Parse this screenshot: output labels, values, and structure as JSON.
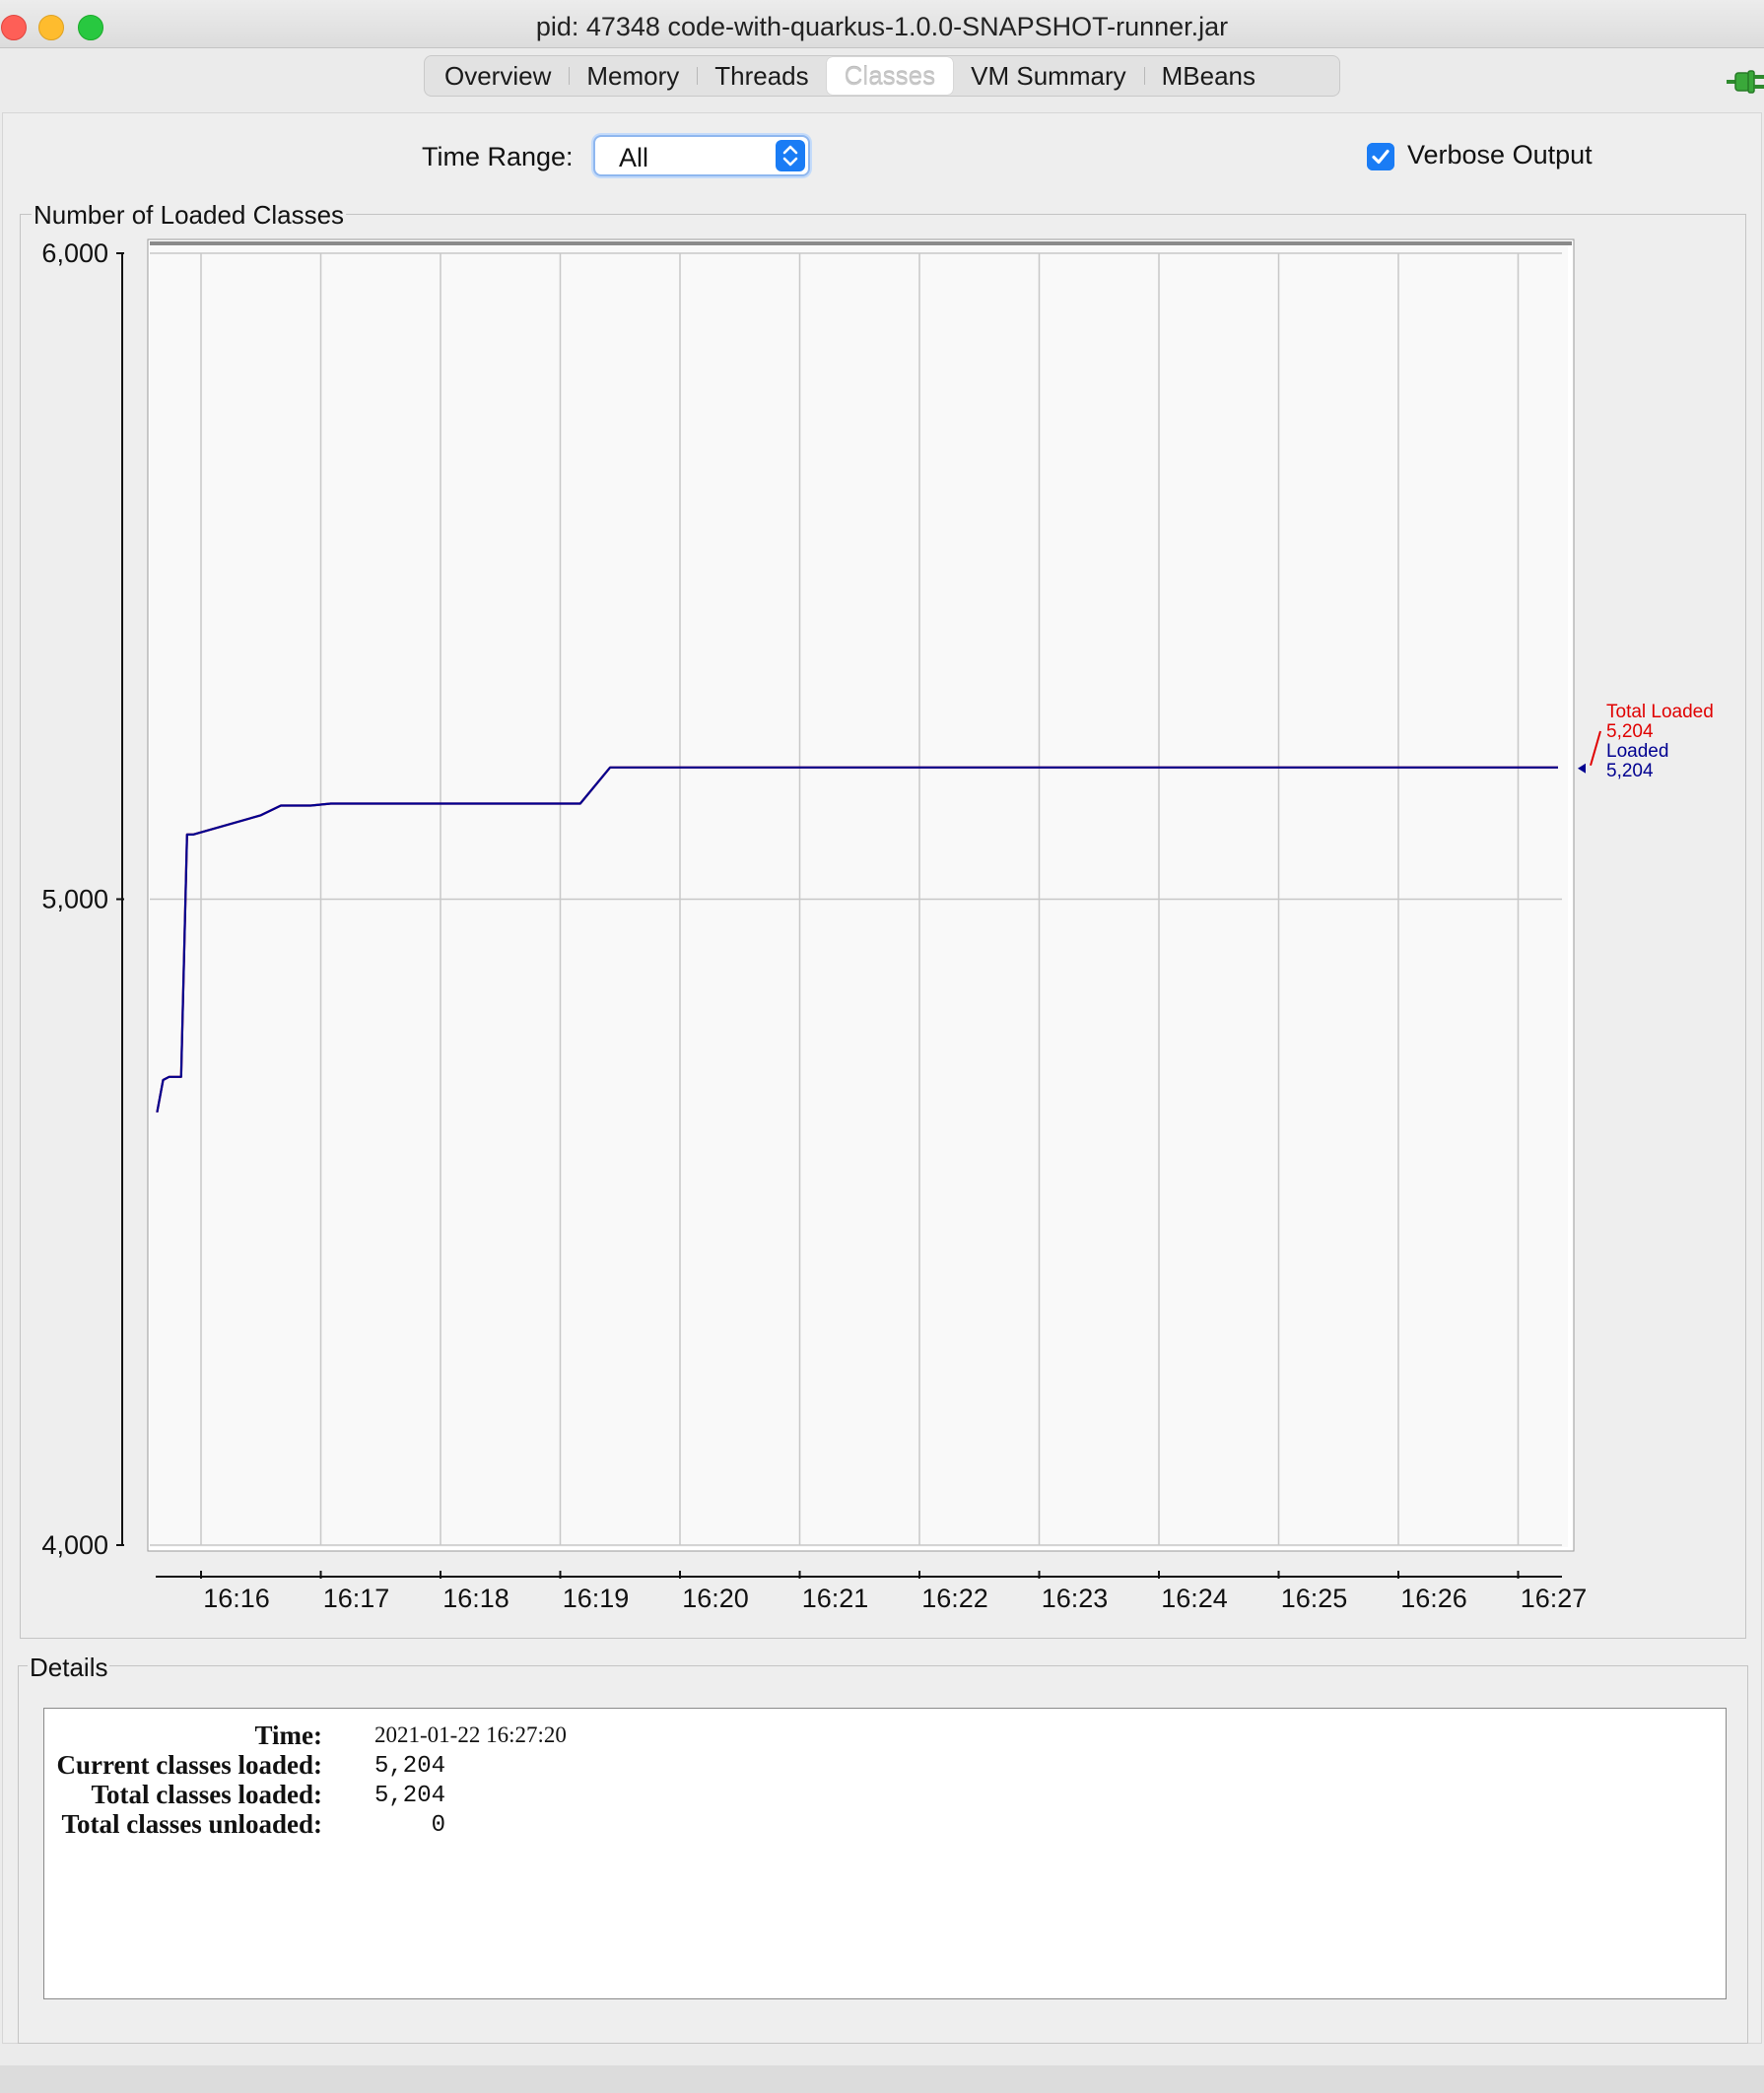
{
  "window": {
    "title": "pid: 47348 code-with-quarkus-1.0.0-SNAPSHOT-runner.jar"
  },
  "tabs": [
    {
      "label": "Overview",
      "active": false
    },
    {
      "label": "Memory",
      "active": false
    },
    {
      "label": "Threads",
      "active": false
    },
    {
      "label": "Classes",
      "active": true
    },
    {
      "label": "VM Summary",
      "active": false
    },
    {
      "label": "MBeans",
      "active": false
    }
  ],
  "controls": {
    "time_range_label": "Time Range:",
    "time_range_value": "All",
    "verbose_label": "Verbose Output",
    "verbose_checked": true,
    "connection_icon": "plug-icon",
    "connection_color": "#3aa83a"
  },
  "chart_panel": {
    "title": "Number of Loaded Classes"
  },
  "chart_data": {
    "type": "line",
    "x_ticks": [
      "16:16",
      "16:17",
      "16:18",
      "16:19",
      "16:20",
      "16:21",
      "16:22",
      "16:23",
      "16:24",
      "16:25",
      "16:26",
      "16:27"
    ],
    "y_ticks": [
      "6,000",
      "5,000",
      "4,000"
    ],
    "ylim": [
      4000,
      6000
    ],
    "xlim": [
      "16:15:36",
      "16:27:20"
    ],
    "grid": true,
    "series": [
      {
        "name": "Total Loaded",
        "color": "#e00000",
        "latest": "5,204",
        "points": [
          [
            "16:15:38",
            4670
          ],
          [
            "16:15:41",
            4720
          ],
          [
            "16:15:44",
            4725
          ],
          [
            "16:15:50",
            4725
          ],
          [
            "16:15:53",
            5100
          ],
          [
            "16:15:56",
            5100
          ],
          [
            "16:16:30",
            5130
          ],
          [
            "16:16:40",
            5145
          ],
          [
            "16:16:55",
            5145
          ],
          [
            "16:17:05",
            5148
          ],
          [
            "16:19:10",
            5148
          ],
          [
            "16:19:25",
            5204
          ],
          [
            "16:27:20",
            5204
          ]
        ]
      },
      {
        "name": "Loaded",
        "color": "#000090",
        "latest": "5,204",
        "points": [
          [
            "16:15:38",
            4670
          ],
          [
            "16:15:41",
            4720
          ],
          [
            "16:15:44",
            4725
          ],
          [
            "16:15:50",
            4725
          ],
          [
            "16:15:53",
            5100
          ],
          [
            "16:15:56",
            5100
          ],
          [
            "16:16:30",
            5130
          ],
          [
            "16:16:40",
            5145
          ],
          [
            "16:16:55",
            5145
          ],
          [
            "16:17:05",
            5148
          ],
          [
            "16:19:10",
            5148
          ],
          [
            "16:19:25",
            5204
          ],
          [
            "16:27:20",
            5204
          ]
        ]
      }
    ]
  },
  "details": {
    "title": "Details",
    "rows": [
      {
        "label": "Time:",
        "value": "2021-01-22 16:27:20",
        "kind": "time"
      },
      {
        "label": "Current classes loaded:",
        "value": "5,204",
        "kind": "num"
      },
      {
        "label": "Total classes loaded:",
        "value": "5,204",
        "kind": "num"
      },
      {
        "label": "Total classes unloaded:",
        "value": "0",
        "kind": "num"
      }
    ]
  }
}
